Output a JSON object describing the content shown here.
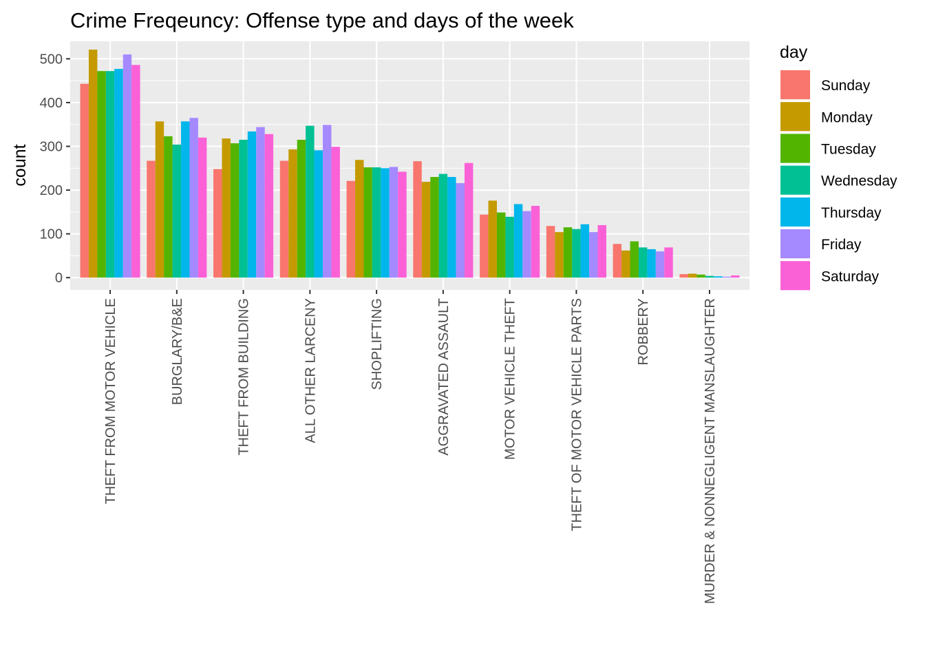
{
  "chart_data": {
    "type": "bar",
    "title": "Crime Freqeuncy: Offense type and days of the week",
    "xlabel": "",
    "ylabel": "count",
    "ylim": [
      -28,
      540
    ],
    "yticks": [
      0,
      100,
      200,
      300,
      400,
      500
    ],
    "grid": true,
    "legend_title": "day",
    "legend_position": "right",
    "categories": [
      "THEFT FROM MOTOR VEHICLE",
      "BURGLARY/B&E",
      "THEFT FROM BUILDING",
      "ALL OTHER LARCENY",
      "SHOPLIFTING",
      "AGGRAVATED ASSAULT",
      "MOTOR VEHICLE THEFT",
      "THEFT OF MOTOR VEHICLE PARTS",
      "ROBBERY",
      "MURDER & NONNEGLIGENT MANSLAUGHTER"
    ],
    "series": [
      {
        "name": "Sunday",
        "color": "#F8766D",
        "values": [
          443,
          267,
          248,
          267,
          221,
          266,
          144,
          118,
          77,
          8
        ]
      },
      {
        "name": "Monday",
        "color": "#C49A00",
        "values": [
          521,
          357,
          318,
          293,
          269,
          219,
          176,
          104,
          62,
          9
        ]
      },
      {
        "name": "Tuesday",
        "color": "#53B400",
        "values": [
          472,
          323,
          307,
          315,
          252,
          230,
          149,
          115,
          83,
          7
        ]
      },
      {
        "name": "Wednesday",
        "color": "#00C094",
        "values": [
          472,
          304,
          315,
          347,
          252,
          237,
          139,
          111,
          69,
          4
        ]
      },
      {
        "name": "Thursday",
        "color": "#00B6EB",
        "values": [
          477,
          357,
          334,
          291,
          250,
          230,
          168,
          122,
          65,
          3
        ]
      },
      {
        "name": "Friday",
        "color": "#A58AFF",
        "values": [
          510,
          365,
          344,
          349,
          253,
          216,
          152,
          104,
          60,
          2
        ]
      },
      {
        "name": "Saturday",
        "color": "#FB61D7",
        "values": [
          486,
          320,
          328,
          299,
          242,
          262,
          164,
          120,
          69,
          5
        ]
      }
    ]
  }
}
